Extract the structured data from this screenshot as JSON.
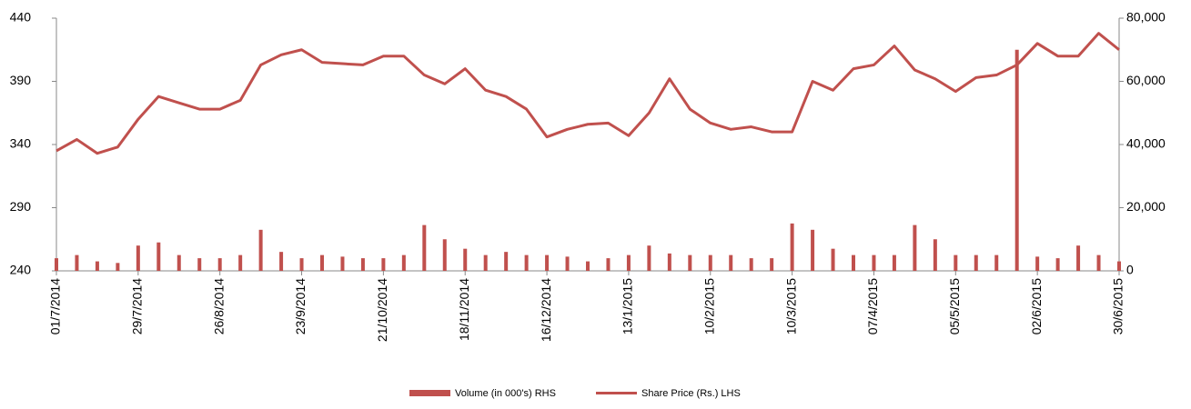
{
  "chart_data": {
    "type": "bar-line",
    "categories": [
      "01/7/2014",
      null,
      null,
      null,
      "29/7/2014",
      null,
      null,
      null,
      "26/8/2014",
      null,
      null,
      null,
      "23/9/2014",
      null,
      null,
      null,
      "21/10/2014",
      null,
      null,
      null,
      "18/11/2014",
      null,
      null,
      null,
      "16/12/2014",
      null,
      null,
      null,
      "13/1/2015",
      null,
      null,
      null,
      "10/2/2015",
      null,
      null,
      null,
      "10/3/2015",
      null,
      null,
      null,
      "07/4/2015",
      null,
      null,
      null,
      "05/5/2015",
      null,
      null,
      null,
      "02/6/2015",
      null,
      null,
      null,
      "30/6/2015"
    ],
    "series": [
      {
        "name": "Volume (in 000's) RHS",
        "type": "bar",
        "axis": "y2",
        "color": "#c0504d",
        "values": [
          4000,
          5000,
          3000,
          2500,
          8000,
          9000,
          5000,
          4000,
          4000,
          5000,
          13000,
          6000,
          4000,
          5000,
          4500,
          4000,
          4000,
          5000,
          14500,
          10000,
          7000,
          5000,
          6000,
          5000,
          5000,
          4500,
          3000,
          4000,
          5000,
          8000,
          5500,
          5000,
          5000,
          5000,
          4000,
          4000,
          15000,
          13000,
          7000,
          5000,
          5000,
          5000,
          14500,
          10000,
          5000,
          5000,
          5000,
          70000,
          4500,
          4000,
          8000,
          5000,
          3000
        ]
      },
      {
        "name": "Share Price (Rs.) LHS",
        "type": "line",
        "color": "#c0504d",
        "values": [
          335,
          344,
          333,
          338,
          360,
          378,
          373,
          368,
          368,
          375,
          403,
          411,
          415,
          405,
          404,
          403,
          410,
          410,
          395,
          388,
          400,
          383,
          378,
          368,
          346,
          352,
          356,
          357,
          347,
          365,
          392,
          368,
          357,
          352,
          354,
          350,
          350,
          390,
          383,
          400,
          403,
          418,
          399,
          392,
          382,
          393,
          395,
          403,
          420,
          410,
          410,
          428,
          415
        ]
      }
    ],
    "ylim": [
      240,
      440
    ],
    "yticks": [
      240,
      290,
      340,
      390,
      440
    ],
    "y2lim": [
      0,
      80000
    ],
    "y2ticks": [
      {
        "value": 0,
        "label": "0"
      },
      {
        "value": 20000,
        "label": "20,000"
      },
      {
        "value": 40000,
        "label": "40,000"
      },
      {
        "value": 60000,
        "label": "60,000"
      },
      {
        "value": 80000,
        "label": "80,000"
      }
    ],
    "grid": false,
    "legend": "bottom"
  }
}
